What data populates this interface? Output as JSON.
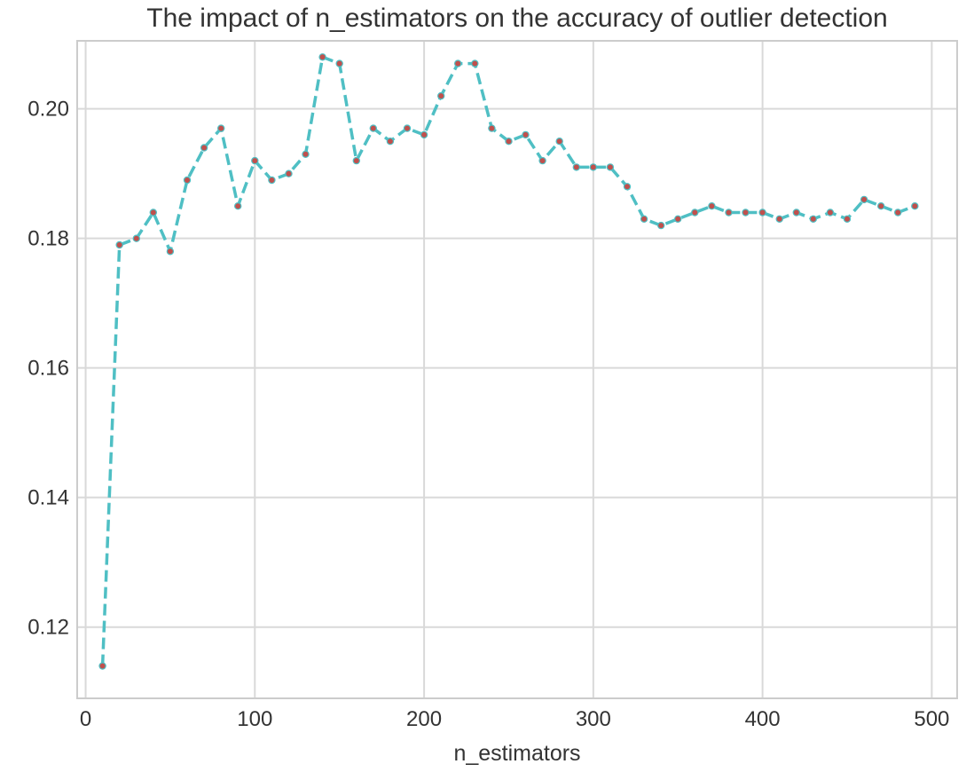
{
  "chart_data": {
    "type": "line",
    "title": "The impact of n_estimators on the accuracy of outlier detection",
    "xlabel": "n_estimators",
    "ylabel": "",
    "xlim": [
      -5,
      515
    ],
    "ylim": [
      0.109,
      0.2105
    ],
    "x_ticks": [
      0,
      100,
      200,
      300,
      400,
      500
    ],
    "y_ticks": [
      0.12,
      0.14,
      0.16,
      0.18,
      0.2
    ],
    "x_tick_labels": [
      "0",
      "100",
      "200",
      "300",
      "400",
      "500"
    ],
    "y_tick_labels": [
      "0.12",
      "0.14",
      "0.16",
      "0.18",
      "0.20"
    ],
    "grid": true,
    "line_style": "dashed",
    "line_color": "#4fbfc4",
    "marker_color": "#c0504d",
    "series": [
      {
        "x": [
          10,
          20,
          30,
          40,
          50,
          60,
          70,
          80,
          90,
          100,
          110,
          120,
          130,
          140,
          150,
          160,
          170,
          180,
          190,
          200,
          210,
          220,
          230,
          240,
          250,
          260,
          270,
          280,
          290,
          300,
          310,
          320,
          330,
          340,
          350,
          360,
          370,
          380,
          390,
          400,
          410,
          420,
          430,
          440,
          450,
          460,
          470,
          480,
          490
        ],
        "values": [
          0.114,
          0.179,
          0.18,
          0.184,
          0.178,
          0.189,
          0.194,
          0.197,
          0.185,
          0.192,
          0.189,
          0.19,
          0.193,
          0.208,
          0.207,
          0.192,
          0.197,
          0.195,
          0.197,
          0.196,
          0.202,
          0.207,
          0.207,
          0.197,
          0.195,
          0.196,
          0.192,
          0.195,
          0.191,
          0.191,
          0.191,
          0.188,
          0.183,
          0.182,
          0.183,
          0.184,
          0.185,
          0.184,
          0.184,
          0.184,
          0.183,
          0.184,
          0.183,
          0.184,
          0.183,
          0.186,
          0.185,
          0.184,
          0.185
        ]
      }
    ]
  }
}
